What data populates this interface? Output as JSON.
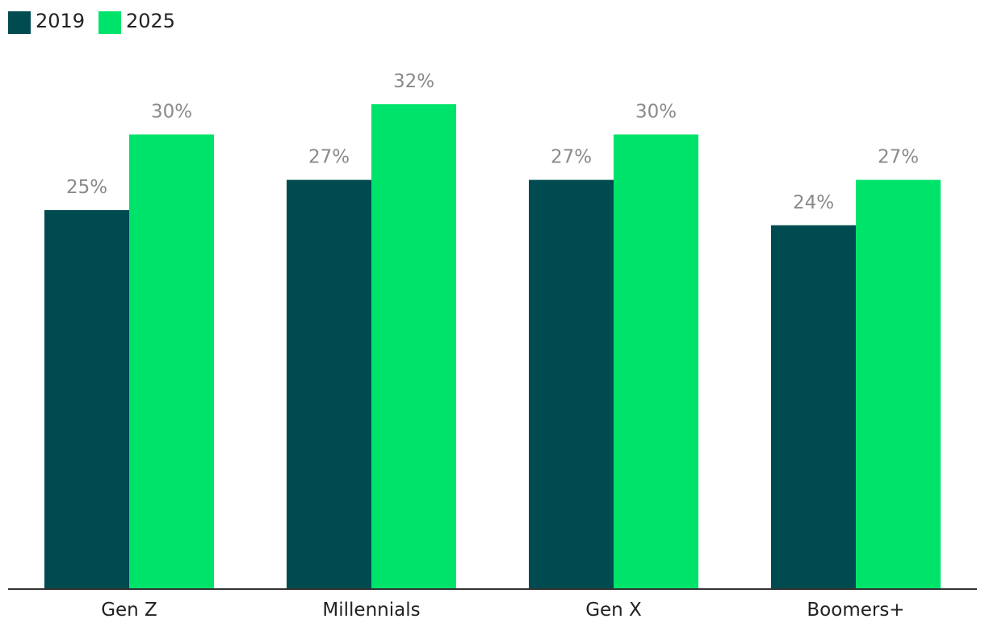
{
  "chart_data": {
    "type": "bar",
    "categories": [
      "Gen Z",
      "Millennials",
      "Gen X",
      "Boomers+"
    ],
    "series": [
      {
        "name": "2019",
        "color": "#004b50",
        "values": [
          25,
          27,
          27,
          24
        ],
        "labels": [
          "25%",
          "27%",
          "27%",
          "24%"
        ]
      },
      {
        "name": "2025",
        "color": "#00e36a",
        "values": [
          30,
          32,
          30,
          27
        ],
        "labels": [
          "30%",
          "32%",
          "30%",
          "27%"
        ]
      }
    ],
    "ylim": [
      0,
      32
    ],
    "grid": false,
    "legend_position": "top-left",
    "axis_color": "#333333"
  }
}
